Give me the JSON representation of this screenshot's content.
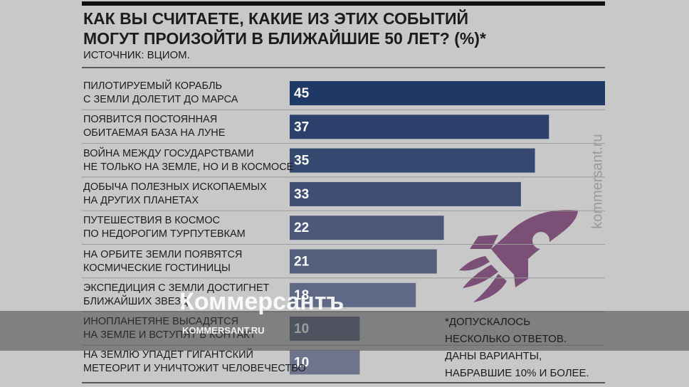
{
  "chart_data": {
    "type": "bar",
    "title": "КАК ВЫ СЧИТАЕТЕ, КАКИЕ ИЗ ЭТИХ СОБЫТИЙ\nМОГУТ ПРОИЗОЙТИ В БЛИЖАЙШИЕ 50 ЛЕТ? (%)*",
    "subtitle": "ИСТОЧНИК: ВЦИОМ.",
    "categories": [
      "ПИЛОТИРУЕМЫЙ КОРАБЛЬ\nС ЗЕМЛИ ДОЛЕТИТ ДО МАРСА",
      "ПОЯВИТСЯ ПОСТОЯННАЯ\nОБИТАЕМАЯ БАЗА НА ЛУНЕ",
      "ВОЙНА МЕЖДУ ГОСУДАРСТВАМИ\nНЕ ТОЛЬКО НА ЗЕМЛЕ, НО И В КОСМОСЕ",
      "ДОБЫЧА ПОЛЕЗНЫХ ИСКОПАЕМЫХ\nНА ДРУГИХ ПЛАНЕТАХ",
      "ПУТЕШЕСТВИЯ В КОСМОС\nПО НЕДОРОГИМ ТУРПУТЕВКАМ",
      "НА ОРБИТЕ ЗЕМЛИ ПОЯВЯТСЯ\nКОСМИЧЕСКИЕ ГОСТИНИЦЫ",
      "ЭКСПЕДИЦИЯ С ЗЕМЛИ ДОСТИГНЕТ\nБЛИЖАЙШИХ ЗВЕЗД",
      "ИНОПЛАНЕТЯНЕ ВЫСАДЯТСЯ\nНА ЗЕМЛЕ И ВСТУПЯТ В КОНТАКТ",
      "НА ЗЕМЛЮ УПАДЕТ ГИГАНТСКИЙ\nМЕТЕОРИТ И УНИЧТОЖИТ ЧЕЛОВЕЧЕСТВО"
    ],
    "values": [
      45,
      37,
      35,
      33,
      22,
      21,
      18,
      10,
      10
    ],
    "colors": [
      "#1f3967",
      "#2b416b",
      "#35486f",
      "#3f4f73",
      "#4b5879",
      "#545f7e",
      "#5f6884",
      "#666e88",
      "#6d748c"
    ],
    "footnote": "*ДОПУСКАЛОСЬ\n НЕСКОЛЬКО ОТВЕТОВ.\n ДАНЫ ВАРИАНТЫ,\n НАБРАВШИЕ 10% И БОЛЕЕ."
  },
  "watermark": {
    "brand": "Коммерсантъ",
    "url": "KOMMERSANT.RU",
    "side": "kommersant.ru"
  }
}
